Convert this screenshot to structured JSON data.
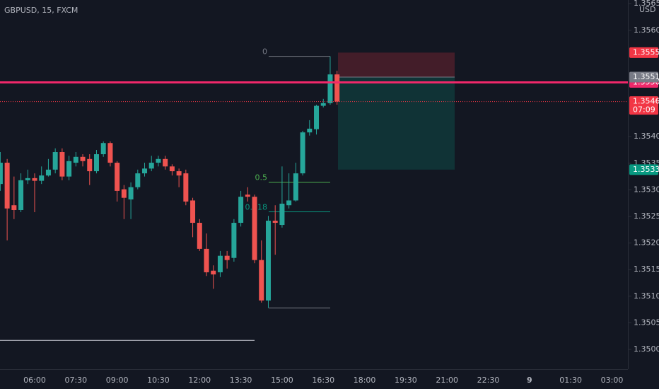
{
  "header": {
    "symbol_line": "GBPUSD, 15, FXCM"
  },
  "chart_data": {
    "type": "candlestick",
    "categories": [
      null,
      null,
      null,
      null,
      null,
      "06:00",
      null,
      null,
      null,
      null,
      null,
      "07:30",
      null,
      null,
      null,
      null,
      null,
      "09:00",
      null,
      null,
      null,
      null,
      null,
      "10:30",
      null,
      null,
      null,
      null,
      null,
      "12:00",
      null,
      null,
      null,
      null,
      null,
      "13:30",
      null,
      null,
      null,
      null,
      null,
      "15:00",
      null,
      null,
      null,
      null,
      null,
      "16:30",
      null,
      null,
      null,
      null,
      null,
      "18:00",
      null,
      null,
      null,
      null,
      null,
      "19:30",
      null,
      null,
      null,
      null,
      null,
      "21:00",
      null,
      null,
      null,
      null,
      null,
      "22:30",
      null,
      null,
      null,
      null,
      null,
      "9",
      null,
      null,
      null,
      null,
      null,
      "01:30",
      null,
      null,
      null,
      null,
      null,
      "03:00"
    ],
    "open": [
      1.35311,
      1.35351,
      1.35271,
      1.35262,
      1.35318,
      1.35322,
      1.35317,
      1.35327,
      1.35338,
      1.35371,
      1.35325,
      1.35351,
      1.35362,
      1.35358,
      1.35335,
      1.35367,
      1.35388,
      1.35351,
      1.35301,
      1.35282,
      1.35305,
      1.35331,
      1.3534,
      1.35351,
      1.35358,
      1.35344,
      1.35335,
      1.35331,
      1.3528,
      1.35238,
      1.35189,
      1.35148,
      1.35145,
      1.35176,
      1.35172,
      1.35238,
      1.35291,
      1.35287,
      1.35168,
      1.35092,
      1.35242,
      1.35234,
      1.35271,
      1.3528,
      1.35331,
      1.35408,
      1.35414,
      1.35458,
      1.35463,
      1.35517,
      null,
      null,
      null,
      null,
      null,
      null,
      null,
      null,
      null,
      null,
      null,
      null,
      null,
      null,
      null,
      null,
      null,
      null,
      null,
      null,
      null,
      null,
      null,
      null,
      null,
      null,
      null,
      null,
      null,
      null,
      null,
      null,
      null,
      null,
      null,
      null,
      null,
      null,
      null,
      null
    ],
    "high": [
      1.35371,
      1.35358,
      1.35325,
      1.35331,
      1.35338,
      1.35331,
      1.35344,
      1.35358,
      1.35378,
      1.35378,
      1.35364,
      1.35371,
      1.35367,
      1.35367,
      1.35375,
      1.35391,
      1.35391,
      1.35354,
      1.35309,
      1.35314,
      1.35338,
      1.35351,
      1.35364,
      1.35364,
      1.35364,
      1.35348,
      1.3534,
      1.35338,
      1.35285,
      1.35245,
      1.35218,
      1.35158,
      1.35185,
      1.35185,
      1.35245,
      1.35298,
      1.35305,
      1.35291,
      1.35205,
      1.35251,
      1.35271,
      1.35344,
      1.35331,
      1.35351,
      1.35411,
      1.35431,
      1.3546,
      1.35471,
      1.35551,
      1.35524,
      null,
      null,
      null,
      null,
      null,
      null,
      null,
      null,
      null,
      null,
      null,
      null,
      null,
      null,
      null,
      null,
      null,
      null,
      null,
      null,
      null,
      null,
      null,
      null,
      null,
      null,
      null,
      null,
      null,
      null,
      null,
      null,
      null,
      null,
      null,
      null,
      null,
      null,
      null,
      null
    ],
    "low": [
      1.35298,
      1.35205,
      1.35245,
      1.35258,
      1.35311,
      1.35258,
      1.35311,
      1.35325,
      1.35331,
      1.35318,
      1.35318,
      1.35344,
      1.35344,
      1.35309,
      1.35331,
      1.35362,
      1.35344,
      1.35278,
      1.35245,
      1.35245,
      1.35301,
      1.35325,
      1.35335,
      1.35344,
      1.35338,
      1.35327,
      1.35305,
      1.35271,
      1.35211,
      1.35185,
      1.35138,
      1.35114,
      1.35136,
      1.35152,
      1.35165,
      1.35231,
      1.35278,
      1.35162,
      1.35088,
      1.35078,
      1.35178,
      1.35229,
      1.35265,
      1.35278,
      1.35327,
      1.35402,
      1.35404,
      1.35455,
      1.3546,
      1.3546,
      null,
      null,
      null,
      null,
      null,
      null,
      null,
      null,
      null,
      null,
      null,
      null,
      null,
      null,
      null,
      null,
      null,
      null,
      null,
      null,
      null,
      null,
      null,
      null,
      null,
      null,
      null,
      null,
      null,
      null,
      null,
      null,
      null,
      null,
      null,
      null,
      null,
      null,
      null,
      null
    ],
    "close": [
      1.35351,
      1.35265,
      1.35262,
      1.35318,
      1.35322,
      1.35317,
      1.35327,
      1.35338,
      1.35371,
      1.35325,
      1.35354,
      1.35362,
      1.35354,
      1.35335,
      1.35367,
      1.35388,
      1.35351,
      1.35298,
      1.35285,
      1.35305,
      1.35331,
      1.3534,
      1.35351,
      1.35358,
      1.35344,
      1.35335,
      1.35327,
      1.35278,
      1.35238,
      1.35189,
      1.35145,
      1.35141,
      1.35176,
      1.35168,
      1.35238,
      1.35287,
      1.35287,
      1.35168,
      1.35092,
      1.35242,
      1.35238,
      1.35274,
      1.3528,
      1.35331,
      1.35408,
      1.35415,
      1.35458,
      1.35463,
      1.35517,
      1.35466,
      null,
      null,
      null,
      null,
      null,
      null,
      null,
      null,
      null,
      null,
      null,
      null,
      null,
      null,
      null,
      null,
      null,
      null,
      null,
      null,
      null,
      null,
      null,
      null,
      null,
      null,
      null,
      null,
      null,
      null,
      null,
      null,
      null,
      null,
      null,
      null,
      null,
      null,
      null,
      null
    ],
    "up_color": "#26a69a",
    "down_color": "#ef5350",
    "ylim": [
      1.349628,
      1.356569
    ],
    "yticks": [
      {
        "value": 1.3565,
        "label": "1.35650"
      },
      {
        "value": 1.356,
        "label": "1.35600"
      },
      {
        "value": 1.354,
        "label": "1.35400"
      },
      {
        "value": 1.3535,
        "label": "1.35350"
      },
      {
        "value": 1.353,
        "label": "1.35300"
      },
      {
        "value": 1.3525,
        "label": "1.35250"
      },
      {
        "value": 1.352,
        "label": "1.35200"
      },
      {
        "value": 1.3515,
        "label": "1.35150"
      },
      {
        "value": 1.351,
        "label": "1.35100"
      },
      {
        "value": 1.3505,
        "label": "1.35050"
      },
      {
        "value": 1.35,
        "label": "1.35000"
      }
    ],
    "currency": "USD",
    "last_price": {
      "value": 1.35466,
      "countdown": "07:09",
      "color": "#f23645"
    },
    "price_line": {
      "value": 1.35502,
      "color": "#f0286a"
    },
    "segment": {
      "value": 1.35017,
      "color": "#d1d4dc"
    },
    "position": {
      "stop": 1.35558,
      "entry": 1.35512,
      "target": 1.35338,
      "stop_color": "#f23645",
      "entry_color": "#787b86",
      "target_color": "#089981"
    },
    "fib": {
      "high": 1.35551,
      "low": 1.35078,
      "levels": [
        0,
        0.5,
        0.618
      ],
      "level_colors": [
        "#787b86",
        "#4caf50",
        "#089981"
      ],
      "color": "#787b86"
    }
  }
}
